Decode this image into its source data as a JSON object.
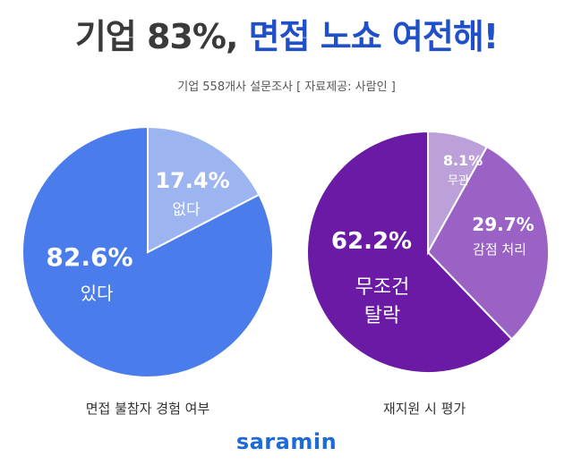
{
  "headline": {
    "part1": "기업 83%,",
    "part2": "면접 노쇼 여전해!"
  },
  "subtitle": "기업 558개사 설문조사  [ 자료제공: 사람인 ]",
  "colors": {
    "blue_main": "#4a7cec",
    "blue_light": "#9cb4f0",
    "purple_main": "#6a1aa4",
    "purple_mid": "#9b62c6",
    "purple_light": "#bca0d9"
  },
  "chart_data": [
    {
      "type": "pie",
      "title": "면접 불참자 경험 여부",
      "slices": [
        {
          "label": "있다",
          "value": 82.6,
          "value_label": "82.6%"
        },
        {
          "label": "없다",
          "value": 17.4,
          "value_label": "17.4%"
        }
      ]
    },
    {
      "type": "pie",
      "title": "재지원 시 평가",
      "slices": [
        {
          "label": "무조건 탈락",
          "value": 62.2,
          "value_label": "62.2%"
        },
        {
          "label": "감점 처리",
          "value": 29.7,
          "value_label": "29.7%"
        },
        {
          "label": "무관",
          "value": 8.1,
          "value_label": "8.1%"
        }
      ]
    }
  ],
  "logo": "saramin"
}
